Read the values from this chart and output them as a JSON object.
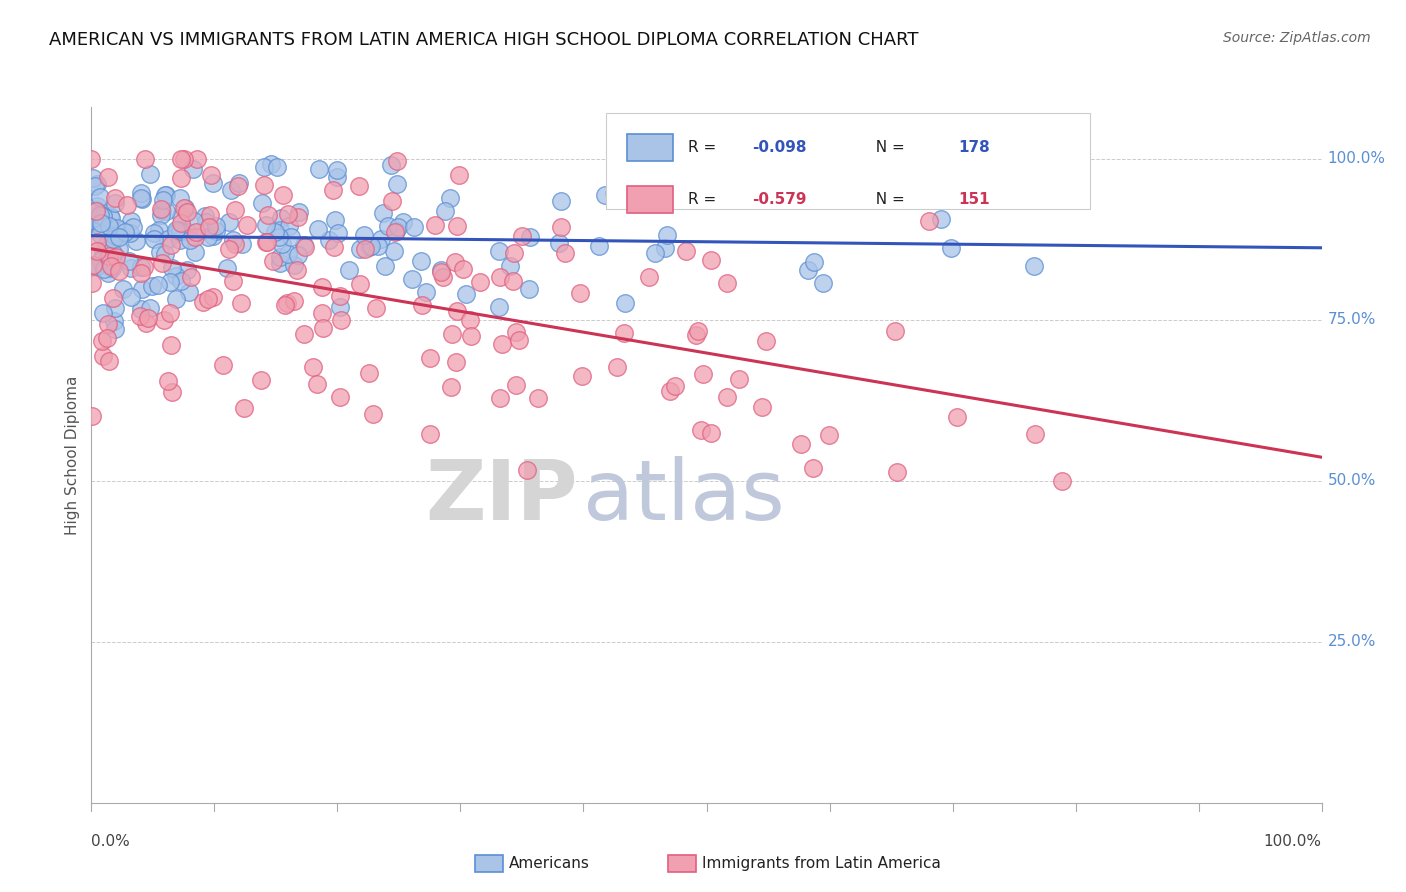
{
  "title": "AMERICAN VS IMMIGRANTS FROM LATIN AMERICA HIGH SCHOOL DIPLOMA CORRELATION CHART",
  "source": "Source: ZipAtlas.com",
  "ylabel": "High School Diploma",
  "R1": -0.098,
  "N1": 178,
  "R2": -0.579,
  "N2": 151,
  "blue_edge": "#5b8fd4",
  "blue_fill": "#aac4e8",
  "pink_edge": "#e06080",
  "pink_fill": "#f0a0b0",
  "blue_line": "#3355bb",
  "pink_line": "#cc3355",
  "legend_label1": "Americans",
  "legend_label2": "Immigrants from Latin America",
  "bg": "#ffffff",
  "watermark_zip": "#d8d8d8",
  "watermark_atlas": "#c8c8d8",
  "title_fs": 13,
  "seed": 99
}
